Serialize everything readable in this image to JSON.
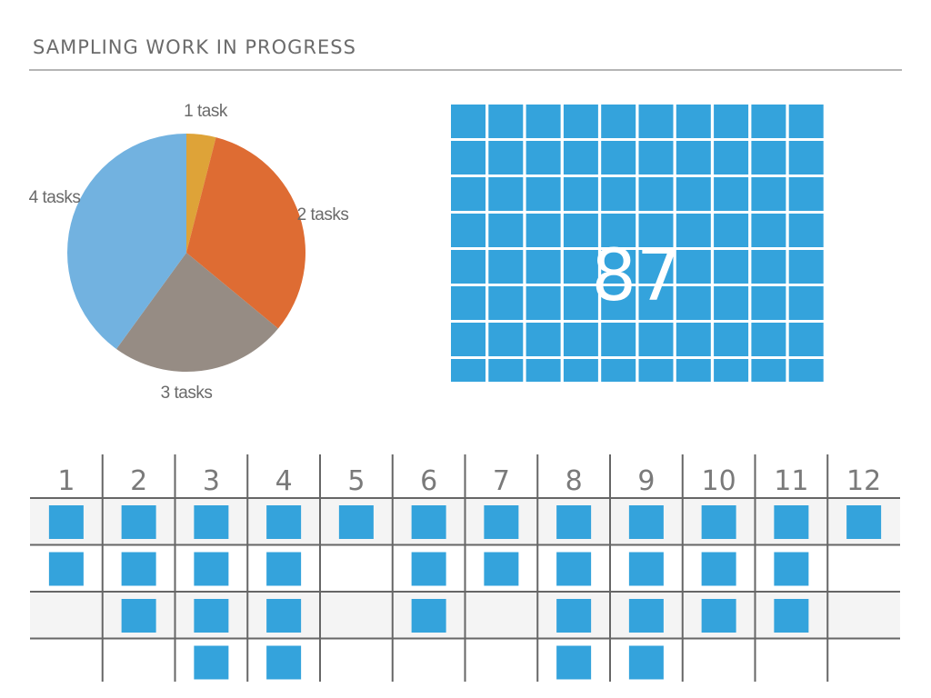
{
  "header": {
    "title": "SAMPLING WORK IN PROGRESS"
  },
  "colors": {
    "blue": "#34a3dc",
    "pie": [
      "#dea338",
      "#de6c33",
      "#968c84",
      "#72b2e0"
    ],
    "rule": "#b5b5b5",
    "text": "#6b6b6b",
    "grid_dark": "#666666",
    "band": "#f4f4f4"
  },
  "chart_data": [
    {
      "type": "pie",
      "title": "",
      "categories": [
        "1 task",
        "2 tasks",
        "3 tasks",
        "4 tasks"
      ],
      "values": [
        4,
        32,
        24,
        40
      ],
      "colors": [
        "#dea338",
        "#de6c33",
        "#968c84",
        "#72b2e0"
      ],
      "labels": [
        "1 task",
        "2 tasks",
        "3 tasks",
        "4 tasks"
      ]
    },
    {
      "type": "waffle",
      "title": "",
      "value": 87,
      "label": "87",
      "columns": 10
    },
    {
      "type": "table",
      "title": "",
      "categories": [
        "1",
        "2",
        "3",
        "4",
        "5",
        "6",
        "7",
        "8",
        "9",
        "10",
        "11",
        "12"
      ],
      "values": [
        2,
        3,
        4,
        4,
        1,
        3,
        2,
        4,
        4,
        3,
        3,
        1
      ]
    }
  ]
}
